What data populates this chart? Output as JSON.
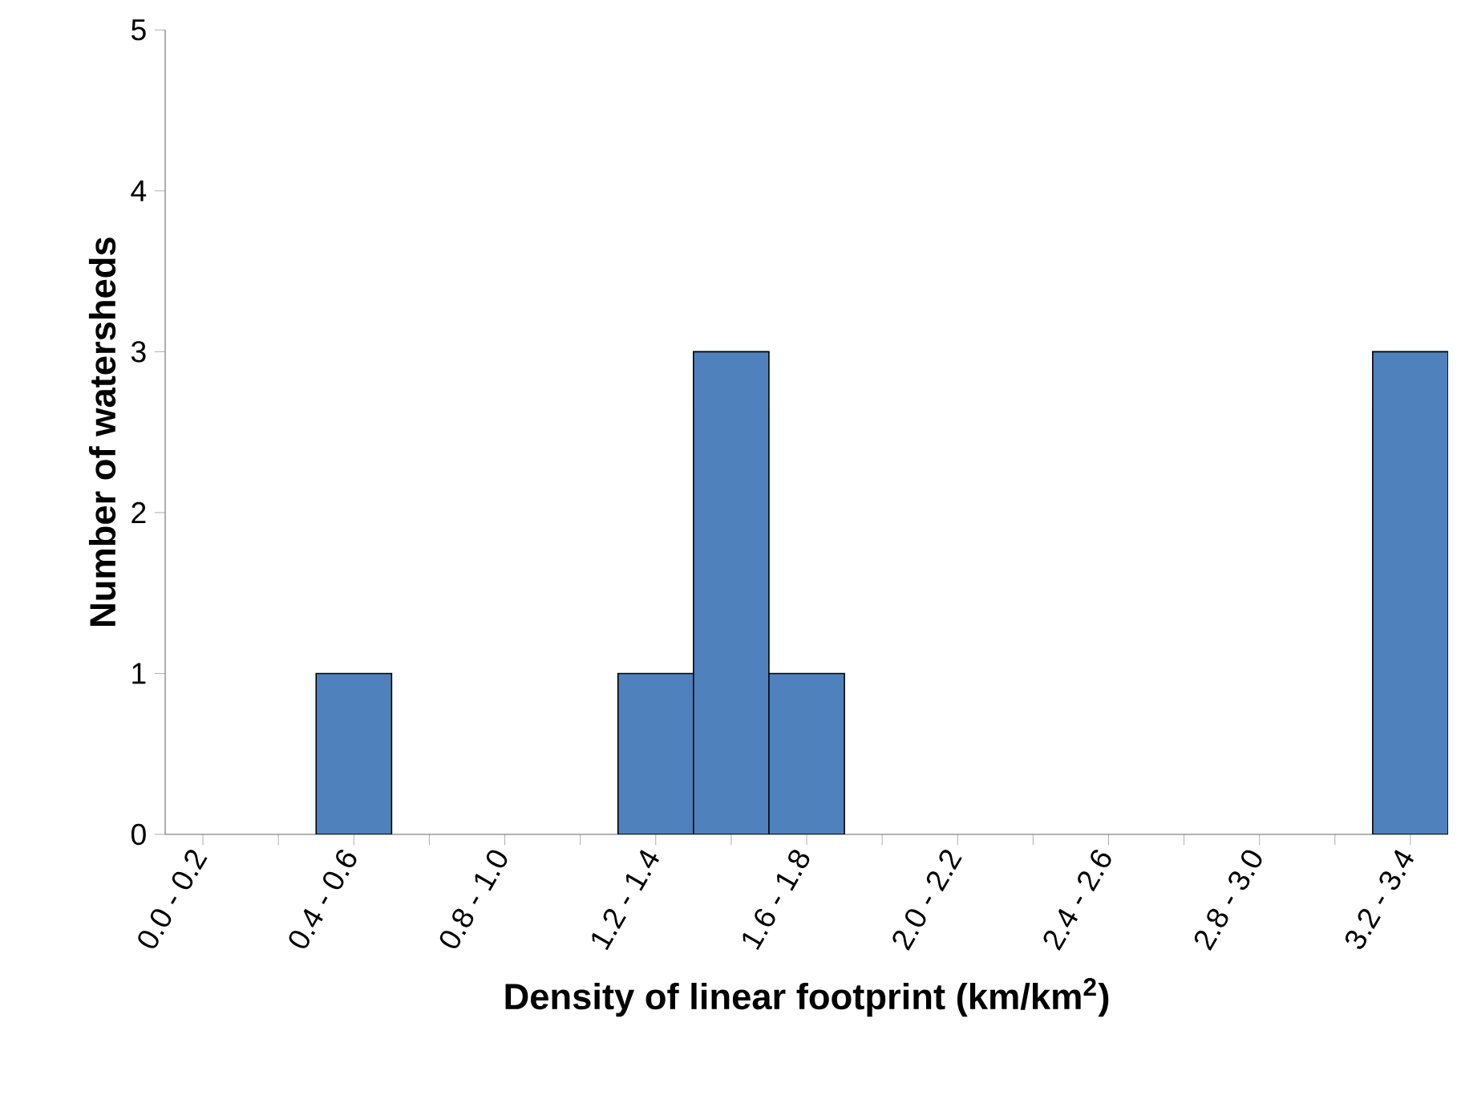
{
  "chart_data": {
    "type": "bar",
    "xlabel": "**Density of linear footprint (km/km$^{2}$)**",
    "ylabel": "Number of watersheds",
    "categories": [
      "0.0 - 0.2",
      null,
      "0.4 - 0.6",
      null,
      "0.8 - 1.0",
      null,
      "1.2 - 1.4",
      null,
      "1.6 - 1.8",
      null,
      "2.0 - 2.2",
      null,
      "2.4 - 2.6",
      null,
      "2.8 - 3.0",
      null,
      "3.2 - 3.4"
    ],
    "values": [
      0,
      0,
      1,
      0,
      0,
      0,
      1,
      3,
      1,
      0,
      0,
      0,
      0,
      0,
      0,
      0,
      3
    ],
    "color": "#4f81bd",
    "ylim": [
      0,
      5
    ],
    "yticks": [
      0,
      1,
      2,
      3,
      4,
      5
    ]
  }
}
